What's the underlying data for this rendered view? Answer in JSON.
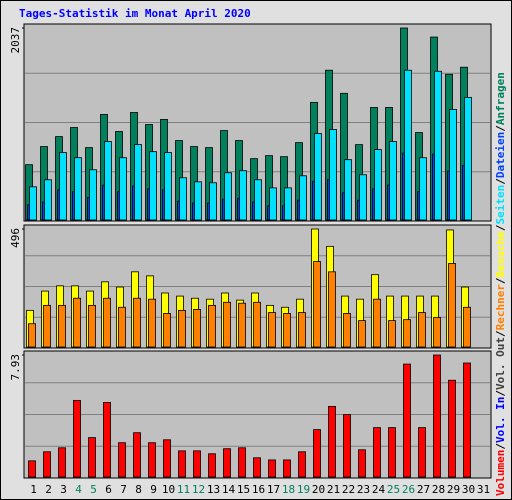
{
  "title": "Tages-Statistik im Monat April 2020",
  "legend_separator": "/",
  "legend_extra": [
    {
      "name": "Vol. In",
      "color": "#0000ff"
    },
    {
      "name": "Vol. Out",
      "color": "#404040"
    }
  ],
  "chart_data": [
    {
      "type": "bar",
      "ylim": [
        0,
        2037
      ],
      "yticks": [
        2037
      ],
      "series": [
        {
          "name": "Anfragen",
          "color": "#00805c",
          "values": [
            587,
            779,
            885,
            981,
            768,
            1120,
            939,
            1141,
            1013,
            1067,
            843,
            779,
            768,
            949,
            843,
            651,
            683,
            672,
            821,
            1248,
            1589,
            1344,
            800,
            1194,
            1194,
            2037,
            928,
            1941,
            1546,
            1621,
            null
          ]
        },
        {
          "name": "Dateien",
          "color": "#0040ff",
          "values": [
            160,
            190,
            320,
            300,
            240,
            370,
            300,
            360,
            330,
            320,
            200,
            180,
            180,
            220,
            230,
            190,
            150,
            150,
            210,
            410,
            430,
            290,
            210,
            330,
            370,
            710,
            300,
            700,
            520,
            580,
            null
          ]
        },
        {
          "name": "Seiten",
          "color": "#00e0ff",
          "values": [
            352,
            427,
            715,
            661,
            533,
            832,
            661,
            800,
            725,
            715,
            448,
            405,
            395,
            501,
            523,
            427,
            341,
            341,
            469,
            917,
            960,
            640,
            480,
            747,
            832,
            1589,
            661,
            1578,
            1173,
            1301,
            null
          ]
        }
      ]
    },
    {
      "type": "bar",
      "ylim": [
        0,
        496
      ],
      "yticks": [
        496
      ],
      "series": [
        {
          "name": "Besuche",
          "color": "#ffff00",
          "values": [
            154,
            235,
            257,
            257,
            235,
            274,
            252,
            316,
            299,
            227,
            214,
            205,
            201,
            227,
            197,
            227,
            175,
            167,
            201,
            496,
            423,
            214,
            201,
            304,
            214,
            214,
            214,
            214,
            492,
            252,
            null
          ]
        },
        {
          "name": "Rechner",
          "color": "#ff8000",
          "values": [
            98,
            175,
            175,
            205,
            175,
            205,
            167,
            205,
            201,
            141,
            154,
            158,
            175,
            188,
            184,
            188,
            145,
            141,
            145,
            359,
            316,
            141,
            111,
            201,
            111,
            115,
            145,
            124,
            351,
            167,
            null
          ]
        }
      ]
    },
    {
      "type": "bar",
      "ylim": [
        0,
        7.93
      ],
      "yticks": [
        7.93
      ],
      "categories": [
        "1",
        "2",
        "3",
        "4",
        "5",
        "6",
        "7",
        "8",
        "9",
        "10",
        "11",
        "12",
        "13",
        "14",
        "15",
        "16",
        "17",
        "18",
        "19",
        "20",
        "21",
        "22",
        "23",
        "24",
        "25",
        "26",
        "27",
        "28",
        "29",
        "30",
        "31"
      ],
      "category_color": "#000000",
      "weekend_color": "#00805c",
      "weekend": [
        3,
        4,
        10,
        11,
        17,
        18,
        24,
        25
      ],
      "series": [
        {
          "name": "Volumen",
          "color": "#ff0000",
          "values": [
            1.05,
            1.64,
            1.9,
            4.98,
            2.56,
            4.85,
            2.23,
            2.88,
            2.23,
            2.42,
            1.7,
            1.7,
            1.51,
            1.84,
            1.9,
            1.25,
            1.11,
            1.11,
            1.64,
            3.08,
            4.59,
            4.06,
            1.77,
            3.21,
            3.21,
            7.34,
            3.21,
            7.93,
            6.29,
            7.41,
            null
          ]
        }
      ]
    }
  ]
}
